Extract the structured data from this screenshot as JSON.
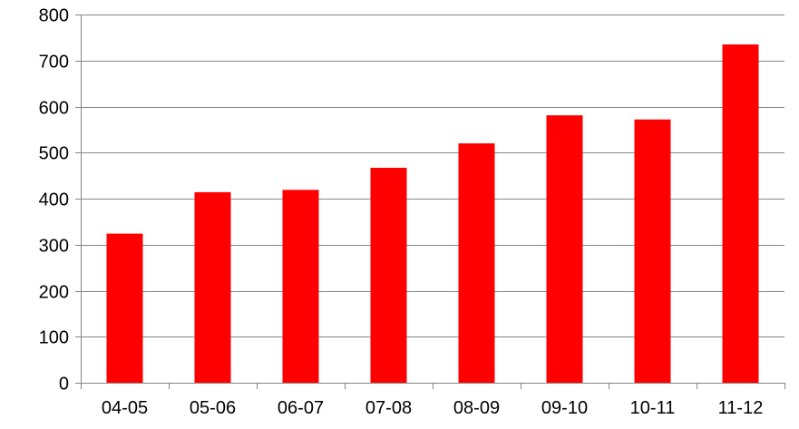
{
  "chart_data": {
    "type": "bar",
    "categories": [
      "04-05",
      "05-06",
      "06-07",
      "07-08",
      "08-09",
      "09-10",
      "10-11",
      "11-12"
    ],
    "values": [
      324,
      414,
      419,
      467,
      520,
      581,
      572,
      735
    ],
    "ylim": [
      0,
      800
    ],
    "yticks": [
      0,
      100,
      200,
      300,
      400,
      500,
      600,
      700,
      800
    ],
    "grid": true,
    "legend": "none",
    "bar_color": "#ff0000",
    "grid_color": "#868686",
    "axis_color": "#868686",
    "text_color": "#000000"
  }
}
